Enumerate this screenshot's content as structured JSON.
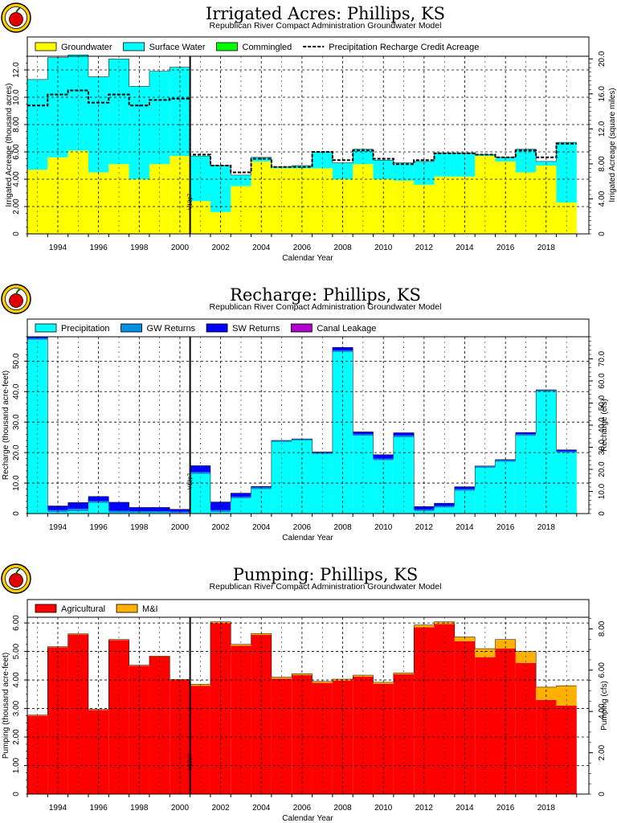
{
  "chart_data": [
    {
      "type": "bar",
      "stacked": true,
      "title": "Irrigated Acres: Phillips, KS",
      "subtitle": "Republican River Compact Administration Groundwater Model",
      "xlabel": "Calendar Year",
      "ylabel": "Irrigated Acreage (thousand acres)",
      "ylabel_right": "Irrigated Acreage (square miles)",
      "ylim": [
        0,
        13.0
      ],
      "yticks": [
        "2.00",
        "4.00",
        "6.00",
        "8.00",
        "10.0",
        "12.0"
      ],
      "ylim_right": [
        0,
        20.3
      ],
      "yticks_right": [
        "4.00",
        "8.00",
        "12.0",
        "16.0",
        "20.0"
      ],
      "xticks": [
        "1994",
        "1996",
        "1998",
        "2000",
        "2002",
        "2004",
        "2006",
        "2008",
        "2010",
        "2012",
        "2014",
        "2016",
        "2018"
      ],
      "x": [
        1993,
        1994,
        1995,
        1996,
        1997,
        1998,
        1999,
        2000,
        2001,
        2002,
        2003,
        2004,
        2005,
        2006,
        2007,
        2008,
        2009,
        2010,
        2011,
        2012,
        2013,
        2014,
        2015,
        2016,
        2017,
        2018,
        2019
      ],
      "series": [
        {
          "name": "Groundwater",
          "color": "#ffff00",
          "values": [
            4.7,
            5.6,
            6.1,
            4.5,
            5.1,
            4.0,
            5.1,
            5.7,
            2.4,
            1.6,
            3.5,
            5.3,
            4.8,
            4.8,
            4.8,
            4.0,
            5.1,
            4.0,
            3.9,
            3.6,
            4.2,
            4.2,
            5.7,
            5.3,
            4.5,
            5.0,
            2.3
          ]
        },
        {
          "name": "Surface Water",
          "color": "#00ffff",
          "values": [
            6.6,
            7.3,
            7.0,
            7.0,
            7.7,
            6.8,
            6.8,
            6.5,
            3.3,
            3.4,
            0.8,
            0.3,
            0.1,
            0.2,
            1.2,
            1.2,
            1.1,
            1.4,
            1.3,
            1.7,
            1.7,
            1.7,
            0.1,
            0.3,
            1.7,
            0.3,
            4.4
          ]
        },
        {
          "name": "Commingled",
          "color": "#00ff00",
          "values": [
            0,
            0,
            0,
            0,
            0,
            0,
            0,
            0,
            0,
            0,
            0,
            0,
            0,
            0,
            0,
            0,
            0,
            0,
            0,
            0,
            0,
            0,
            0,
            0,
            0,
            0,
            0
          ]
        }
      ],
      "line": {
        "name": "Precipitation Recharge Credit Acreage",
        "values": [
          9.4,
          10.2,
          10.5,
          9.6,
          10.2,
          9.4,
          9.8,
          9.9,
          5.8,
          5.0,
          4.5,
          5.5,
          4.9,
          4.9,
          6.0,
          5.4,
          6.1,
          5.5,
          5.1,
          5.4,
          5.9,
          5.9,
          5.8,
          5.6,
          6.1,
          5.6,
          6.6
        ]
      },
      "marker_label": "V12p7",
      "grid": true,
      "legend": "top"
    },
    {
      "type": "bar",
      "stacked": true,
      "title": "Recharge: Phillips, KS",
      "subtitle": "Republican River Compact Administration Groundwater Model",
      "xlabel": "Calendar Year",
      "ylabel": "Recharge (thousand acre-feet)",
      "ylabel_right": "Recharge (cfs)",
      "ylim": [
        0,
        58
      ],
      "yticks": [
        "10.0",
        "20.0",
        "30.0",
        "40.0",
        "50.0"
      ],
      "ylim_right": [
        0,
        80
      ],
      "yticks_right": [
        "10.0",
        "20.0",
        "30.0",
        "40.0",
        "50.0",
        "60.0",
        "70.0"
      ],
      "xticks": [
        "1994",
        "1996",
        "1998",
        "2000",
        "2002",
        "2004",
        "2006",
        "2008",
        "2010",
        "2012",
        "2014",
        "2016",
        "2018"
      ],
      "x": [
        1993,
        1994,
        1995,
        1996,
        1997,
        1998,
        1999,
        2000,
        2001,
        2002,
        2003,
        2004,
        2005,
        2006,
        2007,
        2008,
        2009,
        2010,
        2011,
        2012,
        2013,
        2014,
        2015,
        2016,
        2017,
        2018,
        2019
      ],
      "series": [
        {
          "name": "Precipitation",
          "color": "#00ffff",
          "values": [
            57.0,
            0.5,
            0.8,
            3.5,
            0.3,
            0.3,
            0.3,
            0.2,
            13.0,
            0.5,
            5.0,
            8.0,
            23.5,
            24.0,
            19.5,
            53.0,
            25.5,
            17.5,
            25.0,
            0.8,
            2.0,
            7.5,
            15.0,
            17.0,
            25.5,
            40.0,
            20.0
          ]
        },
        {
          "name": "GW Returns",
          "color": "#0090e0",
          "values": [
            0.5,
            0.6,
            0.8,
            0.6,
            0.6,
            0.5,
            0.5,
            0.4,
            0.6,
            0.6,
            0.5,
            0.6,
            0.5,
            0.5,
            0.5,
            0.5,
            0.5,
            0.5,
            0.6,
            0.5,
            0.5,
            0.5,
            0.5,
            0.5,
            0.5,
            0.5,
            0.4
          ]
        },
        {
          "name": "SW Returns",
          "color": "#0000ff",
          "values": [
            0.5,
            1.4,
            2.0,
            1.5,
            2.8,
            1.2,
            1.2,
            0.8,
            2.1,
            2.7,
            1.2,
            0.3,
            0,
            0,
            0.2,
            1.0,
            0.8,
            1.3,
            0.9,
            1.0,
            0.9,
            0.8,
            0.1,
            0.2,
            0.6,
            0.1,
            0.5
          ]
        },
        {
          "name": "Canal Leakage",
          "color": "#b000d0",
          "values": [
            0,
            0,
            0,
            0,
            0,
            0,
            0,
            0,
            0,
            0,
            0,
            0,
            0,
            0,
            0,
            0,
            0,
            0,
            0,
            0,
            0,
            0,
            0,
            0,
            0,
            0,
            0
          ]
        }
      ],
      "marker_label": "V12p7",
      "grid": true,
      "legend": "top"
    },
    {
      "type": "bar",
      "stacked": true,
      "title": "Pumping: Phillips, KS",
      "subtitle": "Republican River Compact Administration Groundwater Model",
      "xlabel": "Calendar Year",
      "ylabel": "Pumping (thousand acre-feet)",
      "ylabel_right": "Pumping (cfs)",
      "ylim": [
        0,
        6.2
      ],
      "yticks": [
        "1.00",
        "2.00",
        "3.00",
        "4.00",
        "5.00",
        "6.00"
      ],
      "ylim_right": [
        0,
        8.56
      ],
      "yticks_right": [
        "2.00",
        "4.00",
        "6.00",
        "8.00"
      ],
      "xticks": [
        "1994",
        "1996",
        "1998",
        "2000",
        "2002",
        "2004",
        "2006",
        "2008",
        "2010",
        "2012",
        "2014",
        "2016",
        "2018"
      ],
      "x": [
        1993,
        1994,
        1995,
        1996,
        1997,
        1998,
        1999,
        2000,
        2001,
        2002,
        2003,
        2004,
        2005,
        2006,
        2007,
        2008,
        2009,
        2010,
        2011,
        2012,
        2013,
        2014,
        2015,
        2016,
        2017,
        2018,
        2019
      ],
      "series": [
        {
          "name": "Agricultural",
          "color": "#ff0000",
          "values": [
            2.75,
            5.15,
            5.6,
            2.95,
            5.4,
            4.5,
            4.82,
            4.0,
            3.8,
            5.99,
            5.2,
            5.58,
            4.05,
            4.17,
            3.9,
            3.98,
            4.12,
            3.87,
            4.2,
            5.85,
            5.96,
            5.36,
            4.8,
            5.1,
            4.6,
            3.3,
            3.1
          ]
        },
        {
          "name": "M&I",
          "color": "#ffb000",
          "values": [
            0.02,
            0.02,
            0.02,
            0.02,
            0.02,
            0.02,
            0.02,
            0.02,
            0.05,
            0.05,
            0.05,
            0.05,
            0.05,
            0.05,
            0.05,
            0.05,
            0.05,
            0.05,
            0.05,
            0.08,
            0.08,
            0.15,
            0.3,
            0.32,
            0.4,
            0.45,
            0.7
          ]
        }
      ],
      "marker_label": "V12p7",
      "grid": true,
      "legend": "top"
    }
  ]
}
